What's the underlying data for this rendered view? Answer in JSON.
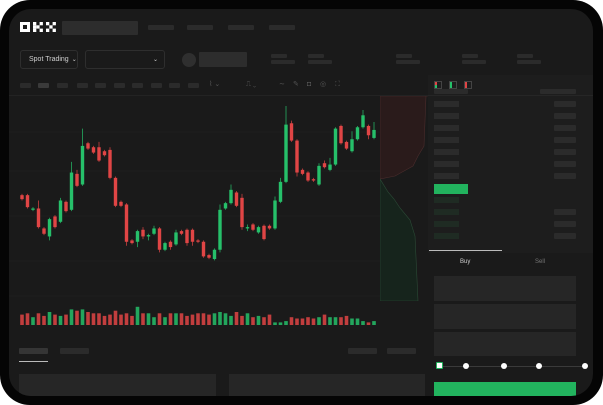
{
  "header": {
    "logo": "OKX"
  },
  "market_selector": {
    "label": "Spot Trading",
    "chevron": "chevron-down-icon"
  },
  "order_form": {
    "tabs": [
      {
        "label": "Buy",
        "active": true
      },
      {
        "label": "Sell",
        "active": false
      }
    ],
    "slider_percent": 0,
    "slider_stops": 5
  },
  "colors": {
    "up": "#26c06a",
    "down": "#e04545",
    "accent": "#22b35e",
    "background": "#1a1a1a"
  },
  "chart_data": {
    "type": "candlestick",
    "candles": [
      [
        118,
        119,
        114,
        115
      ],
      [
        118,
        119,
        108,
        109
      ],
      [
        107,
        109,
        106,
        108
      ],
      [
        108,
        114,
        93,
        94
      ],
      [
        93,
        94,
        88,
        89
      ],
      [
        87,
        101,
        84,
        100
      ],
      [
        102,
        103,
        93,
        94
      ],
      [
        98,
        116,
        97,
        114
      ],
      [
        113,
        114,
        105,
        106
      ],
      [
        107,
        143,
        106,
        135
      ],
      [
        134,
        137,
        124,
        125
      ],
      [
        126,
        168,
        125,
        155
      ],
      [
        157,
        158,
        152,
        153
      ],
      [
        154,
        155,
        149,
        150
      ],
      [
        154,
        158,
        143,
        144
      ],
      [
        151,
        152,
        147,
        148
      ],
      [
        152,
        154,
        130,
        131
      ],
      [
        131,
        132,
        109,
        110
      ],
      [
        113,
        114,
        109,
        110
      ],
      [
        111,
        112,
        80,
        83
      ],
      [
        84,
        85,
        81,
        82
      ],
      [
        83,
        92,
        79,
        91
      ],
      [
        92,
        94,
        85,
        87
      ],
      [
        87,
        89,
        84,
        88
      ],
      [
        89,
        95,
        88,
        93
      ],
      [
        93,
        94,
        75,
        77
      ],
      [
        77,
        83,
        76,
        82
      ],
      [
        83,
        84,
        77,
        79
      ],
      [
        81,
        92,
        80,
        90
      ],
      [
        91,
        92,
        88,
        89
      ],
      [
        92,
        93,
        80,
        82
      ],
      [
        92,
        93,
        80,
        83
      ],
      [
        84,
        85,
        82,
        83
      ],
      [
        83,
        84,
        71,
        72
      ],
      [
        73,
        74,
        70,
        71
      ],
      [
        70,
        78,
        69,
        77
      ],
      [
        77,
        111,
        75,
        107
      ],
      [
        108,
        113,
        107,
        112
      ],
      [
        112,
        126,
        111,
        122
      ],
      [
        120,
        121,
        109,
        110
      ],
      [
        116,
        119,
        92,
        94
      ],
      [
        93,
        96,
        91,
        94
      ],
      [
        96,
        97,
        91,
        92
      ],
      [
        90,
        95,
        89,
        94
      ],
      [
        95,
        96,
        84,
        85
      ],
      [
        95,
        96,
        92,
        93
      ],
      [
        93,
        117,
        92,
        114
      ],
      [
        113,
        131,
        112,
        128
      ],
      [
        128,
        185,
        127,
        171
      ],
      [
        172,
        174,
        158,
        159
      ],
      [
        159,
        160,
        132,
        135
      ],
      [
        137,
        138,
        133,
        134
      ],
      [
        135,
        136,
        128,
        129
      ],
      [
        130,
        131,
        128,
        129
      ],
      [
        126,
        142,
        125,
        140
      ],
      [
        142,
        144,
        138,
        139
      ],
      [
        137,
        146,
        136,
        141
      ],
      [
        141,
        169,
        140,
        168
      ],
      [
        170,
        171,
        156,
        157
      ],
      [
        158,
        159,
        152,
        153
      ],
      [
        151,
        166,
        150,
        160
      ],
      [
        160,
        170,
        159,
        169
      ],
      [
        169,
        182,
        168,
        178
      ],
      [
        170,
        171,
        160,
        163
      ],
      [
        161,
        173,
        160,
        167
      ]
    ],
    "volume": [
      8,
      9,
      6,
      9,
      7,
      10,
      8,
      7,
      8,
      12,
      11,
      12,
      10,
      9,
      9,
      7,
      8,
      11,
      8,
      9,
      7,
      14,
      9,
      9,
      6,
      9,
      6,
      9,
      9,
      9,
      7,
      8,
      9,
      9,
      8,
      9,
      10,
      9,
      7,
      10,
      7,
      9,
      6,
      7,
      6,
      8,
      2,
      2,
      3,
      6,
      5,
      5,
      6,
      5,
      6,
      8,
      6,
      6,
      6,
      7,
      5,
      5,
      3,
      2,
      3
    ],
    "ylim": [
      40,
      200
    ]
  }
}
